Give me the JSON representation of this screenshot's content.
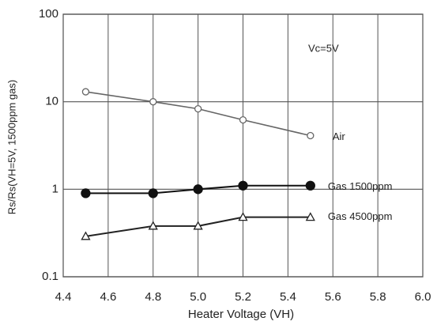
{
  "chart_data": {
    "type": "line",
    "x_label": "Heater Voltage (VH)",
    "y_label": "Rs/Rs(VH=5V, 1500ppm gas)",
    "annotation": "Vc=5V",
    "x": [
      4.5,
      4.8,
      5.0,
      5.2,
      5.5
    ],
    "series": [
      {
        "name": "Air",
        "color": "#666666",
        "marker": "circle-open",
        "values": [
          13,
          10,
          8.3,
          6.2,
          4.1
        ]
      },
      {
        "name": "Gas 1500ppm",
        "color": "#111111",
        "marker": "circle-filled",
        "values": [
          0.9,
          0.9,
          1.0,
          1.1,
          1.1
        ]
      },
      {
        "name": "Gas 4500ppm",
        "color": "#222222",
        "marker": "triangle-open",
        "values": [
          0.29,
          0.38,
          0.38,
          0.48,
          0.48
        ]
      }
    ],
    "xlim": [
      4.4,
      6.0
    ],
    "xticks": [
      4.4,
      4.6,
      4.8,
      {
        "value": 5,
        "label": "5.0"
      },
      5.2,
      5.4,
      5.6,
      5.8,
      {
        "value": 6,
        "label": "6.0"
      }
    ],
    "ylim": [
      0.1,
      100
    ],
    "yticks": [
      0.1,
      1,
      10,
      100
    ],
    "y_scale": "log",
    "grid": true
  }
}
